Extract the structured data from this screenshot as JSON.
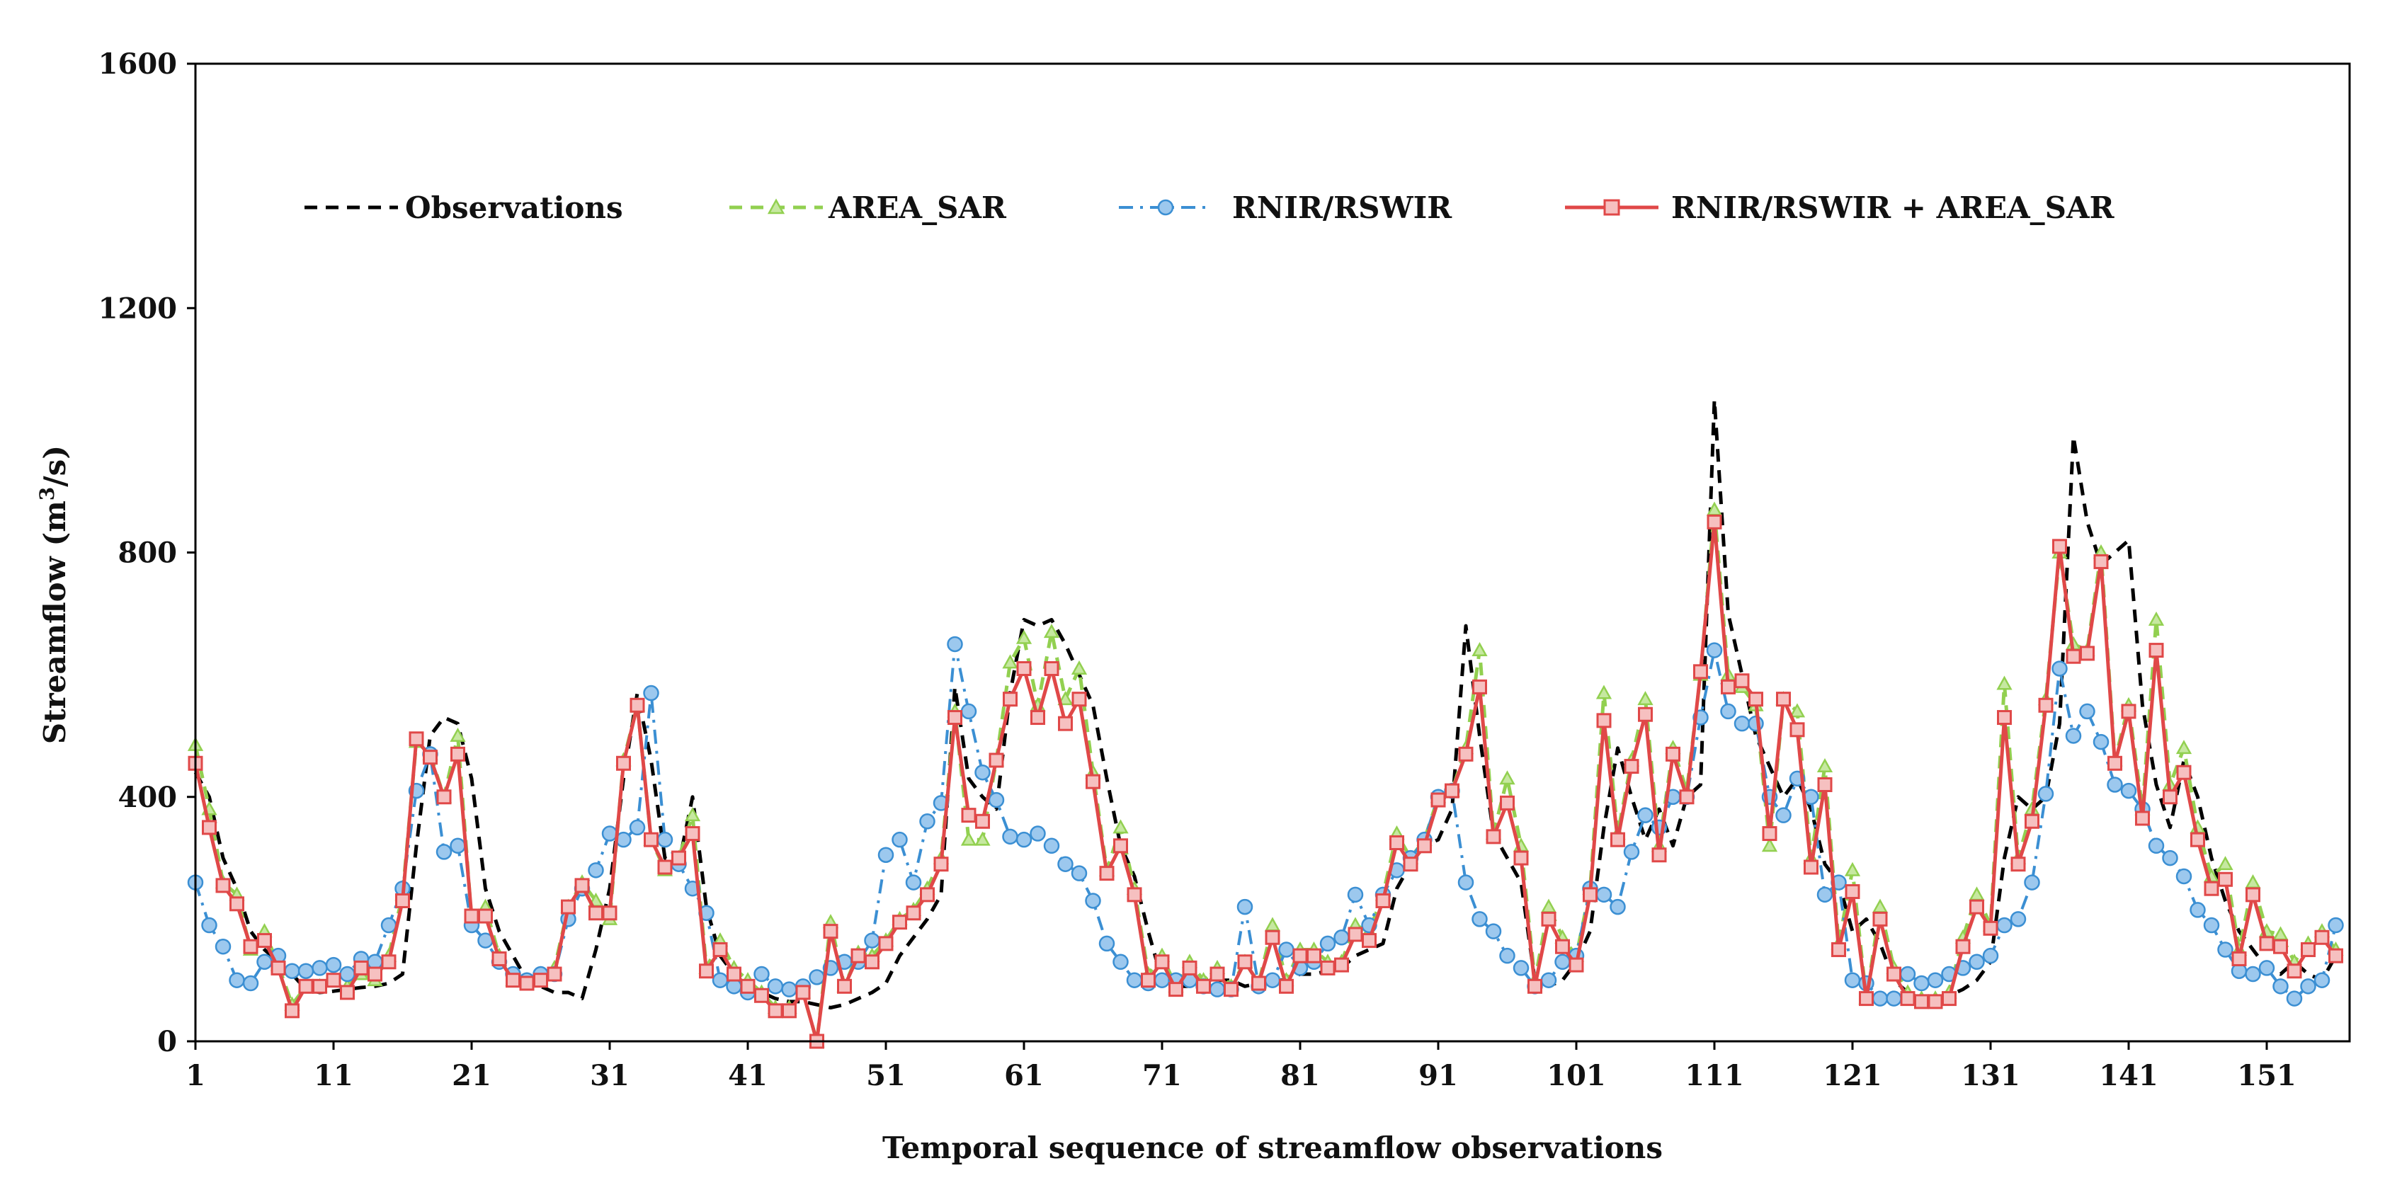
{
  "chart_data": {
    "type": "line",
    "title": "",
    "xlabel": "Temporal sequence of streamflow observations",
    "ylabel_main": "Streamflow (m",
    "ylabel_sup": "3",
    "ylabel_end": "/s)",
    "ylim": [
      0,
      1600
    ],
    "xlim": [
      1,
      157
    ],
    "y_ticks": [
      0,
      400,
      800,
      1200,
      1600
    ],
    "y_tick_labels": [
      "0",
      "400",
      "800",
      "1200",
      "1600"
    ],
    "x_ticks": [
      1,
      11,
      21,
      31,
      41,
      51,
      61,
      71,
      81,
      91,
      101,
      111,
      121,
      131,
      141,
      151
    ],
    "x_tick_labels": [
      "1",
      "11",
      "21",
      "31",
      "41",
      "51",
      "61",
      "71",
      "81",
      "91",
      "101",
      "111",
      "121",
      "131",
      "141",
      "151"
    ],
    "grid": false,
    "legend_position": "top",
    "series": [
      {
        "name": "Observations",
        "color": "#000000",
        "style": "dashed",
        "marker": "none",
        "values": [
          440,
          400,
          300,
          250,
          180,
          150,
          130,
          110,
          85,
          80,
          82,
          85,
          88,
          90,
          95,
          110,
          320,
          500,
          530,
          520,
          430,
          250,
          180,
          140,
          100,
          90,
          80,
          80,
          70,
          150,
          250,
          430,
          570,
          460,
          300,
          290,
          400,
          220,
          140,
          110,
          90,
          80,
          70,
          65,
          65,
          60,
          55,
          60,
          70,
          80,
          95,
          140,
          170,
          200,
          240,
          580,
          430,
          400,
          380,
          570,
          690,
          680,
          690,
          650,
          600,
          550,
          430,
          320,
          270,
          180,
          100,
          90,
          90,
          100,
          100,
          100,
          90,
          95,
          100,
          100,
          110,
          110,
          115,
          120,
          140,
          150,
          160,
          250,
          290,
          320,
          330,
          380,
          680,
          500,
          340,
          300,
          260,
          100,
          90,
          100,
          130,
          180,
          350,
          480,
          400,
          330,
          380,
          320,
          400,
          420,
          1050,
          700,
          600,
          500,
          450,
          400,
          430,
          380,
          290,
          260,
          180,
          200,
          160,
          100,
          80,
          70,
          70,
          75,
          85,
          100,
          130,
          300,
          400,
          380,
          400,
          520,
          990,
          850,
          780,
          800,
          820,
          550,
          420,
          350,
          460,
          400,
          300,
          230,
          180,
          150,
          120,
          110,
          130,
          110,
          100,
          140
        ]
      },
      {
        "name": "AREA_SAR",
        "color": "#92D050",
        "style": "dashed",
        "marker": "triangle",
        "values": [
          485,
          380,
          260,
          240,
          150,
          180,
          125,
          60,
          90,
          90,
          100,
          90,
          110,
          100,
          140,
          240,
          490,
          470,
          400,
          500,
          200,
          220,
          140,
          100,
          100,
          110,
          120,
          220,
          260,
          230,
          200,
          460,
          550,
          330,
          280,
          300,
          370,
          120,
          165,
          120,
          100,
          80,
          55,
          55,
          80,
          0,
          195,
          90,
          145,
          140,
          165,
          200,
          215,
          250,
          300,
          540,
          330,
          330,
          460,
          620,
          660,
          550,
          670,
          560,
          610,
          440,
          280,
          350,
          250,
          110,
          140,
          90,
          130,
          100,
          120,
          90,
          130,
          95,
          190,
          100,
          150,
          150,
          130,
          130,
          190,
          180,
          240,
          340,
          300,
          330,
          400,
          410,
          480,
          640,
          340,
          430,
          320,
          100,
          220,
          170,
          140,
          250,
          570,
          340,
          460,
          560,
          320,
          480,
          410,
          600,
          870,
          600,
          580,
          550,
          320,
          560,
          540,
          300,
          450,
          160,
          280,
          70,
          220,
          120,
          80,
          70,
          70,
          80,
          170,
          240,
          190,
          585,
          300,
          380,
          560,
          800,
          650,
          640,
          800,
          460,
          550,
          380,
          690,
          420,
          480,
          350,
          270,
          290,
          150,
          260,
          180,
          175,
          130,
          160,
          180,
          150
        ]
      },
      {
        "name": "RNIR/RSWIR",
        "color": "#3B8FD3",
        "style": "dash-dot",
        "marker": "circle",
        "values": [
          260,
          190,
          155,
          100,
          95,
          130,
          140,
          115,
          115,
          120,
          125,
          110,
          135,
          130,
          190,
          250,
          410,
          470,
          310,
          320,
          190,
          165,
          130,
          110,
          100,
          110,
          110,
          200,
          250,
          280,
          340,
          330,
          350,
          570,
          330,
          290,
          250,
          210,
          100,
          90,
          80,
          110,
          90,
          85,
          90,
          105,
          120,
          130,
          130,
          165,
          305,
          330,
          260,
          360,
          390,
          650,
          540,
          440,
          395,
          335,
          330,
          340,
          320,
          290,
          275,
          230,
          160,
          130,
          100,
          95,
          100,
          100,
          100,
          90,
          85,
          85,
          220,
          90,
          100,
          150,
          120,
          130,
          160,
          170,
          240,
          190,
          240,
          280,
          300,
          330,
          400,
          410,
          260,
          200,
          180,
          140,
          120,
          90,
          100,
          130,
          140,
          250,
          240,
          220,
          310,
          370,
          350,
          400,
          400,
          530,
          640,
          540,
          520,
          520,
          400,
          370,
          430,
          400,
          240,
          260,
          100,
          95,
          70,
          70,
          110,
          95,
          100,
          110,
          120,
          130,
          140,
          190,
          200,
          260,
          405,
          610,
          500,
          540,
          490,
          420,
          410,
          380,
          320,
          300,
          270,
          215,
          190,
          150,
          115,
          110,
          120,
          90,
          70,
          90,
          100,
          190
        ]
      },
      {
        "name": "RNIR/RSWIR + AREA_SAR",
        "color": "#E04848",
        "style": "solid",
        "marker": "square",
        "values": [
          455,
          350,
          255,
          225,
          155,
          165,
          120,
          50,
          90,
          90,
          100,
          80,
          120,
          110,
          130,
          230,
          495,
          465,
          400,
          470,
          205,
          205,
          135,
          100,
          95,
          100,
          110,
          220,
          255,
          210,
          210,
          455,
          550,
          330,
          285,
          300,
          340,
          115,
          150,
          110,
          90,
          75,
          50,
          50,
          80,
          0,
          180,
          90,
          140,
          130,
          160,
          195,
          210,
          240,
          290,
          530,
          370,
          360,
          460,
          560,
          610,
          530,
          610,
          520,
          560,
          425,
          275,
          320,
          240,
          100,
          130,
          85,
          120,
          90,
          110,
          85,
          130,
          95,
          170,
          90,
          140,
          140,
          120,
          125,
          175,
          165,
          230,
          325,
          290,
          320,
          395,
          410,
          470,
          580,
          335,
          390,
          300,
          90,
          200,
          155,
          125,
          240,
          525,
          330,
          450,
          535,
          305,
          470,
          400,
          605,
          850,
          580,
          590,
          560,
          340,
          560,
          510,
          285,
          420,
          150,
          245,
          70,
          200,
          110,
          70,
          65,
          65,
          70,
          155,
          220,
          185,
          530,
          290,
          360,
          550,
          810,
          630,
          635,
          785,
          455,
          540,
          365,
          640,
          400,
          440,
          330,
          250,
          265,
          135,
          240,
          160,
          155,
          115,
          150,
          170,
          140
        ]
      }
    ]
  }
}
